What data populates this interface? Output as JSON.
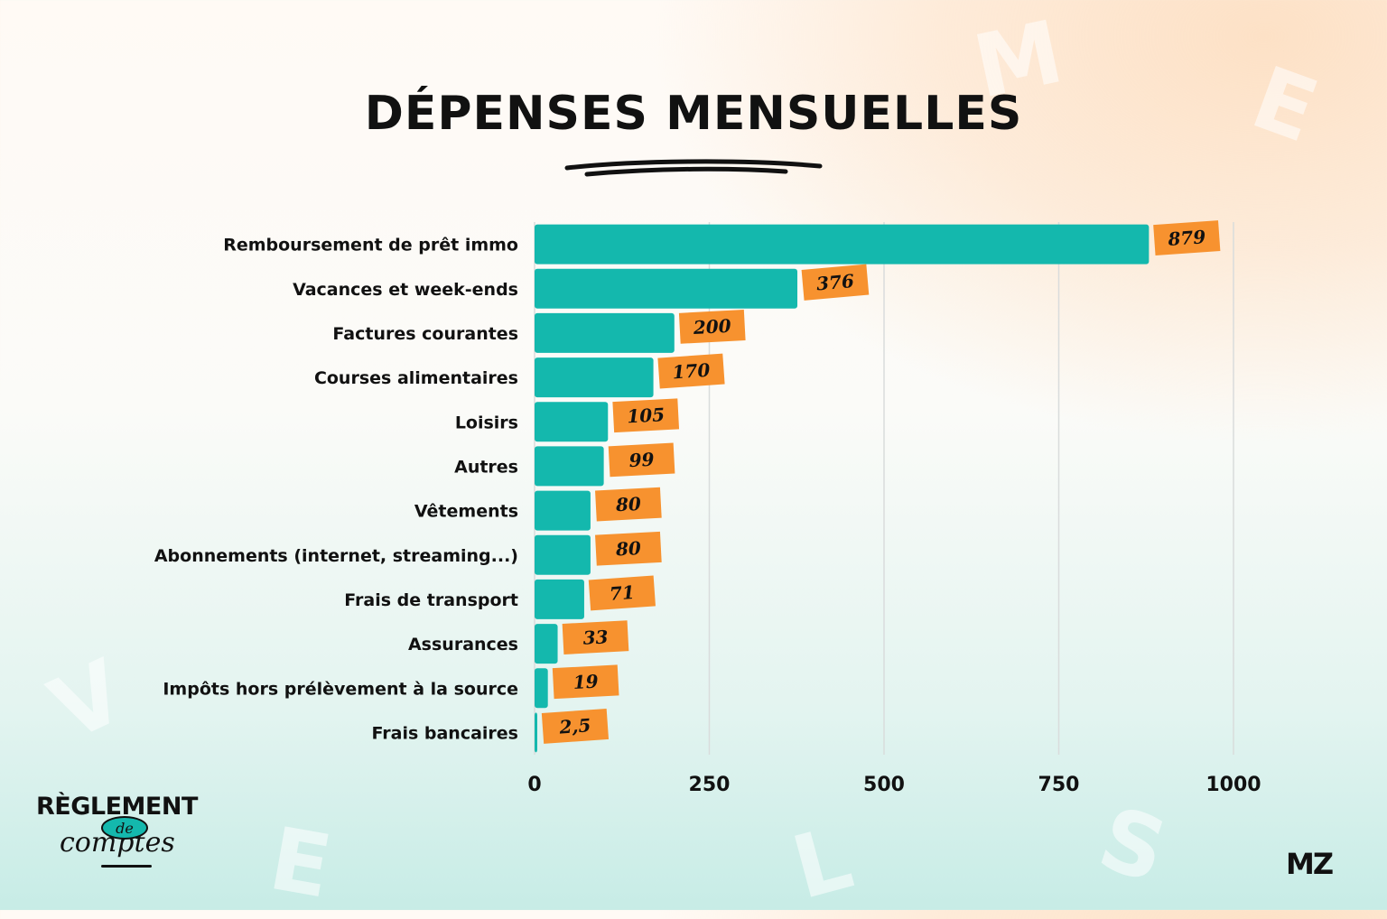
{
  "title": "DÉPENSES MENSUELLES",
  "brand_left": {
    "main": "RÈGLEMENT",
    "de": "de",
    "sub": "comptes"
  },
  "brand_right": "MZ",
  "colors": {
    "bar": "#14b8ad",
    "label_bg": "#f7922f",
    "text": "#111111",
    "grid": "#d9dcdc"
  },
  "chart_data": {
    "type": "bar",
    "orientation": "horizontal",
    "title": "DÉPENSES MENSUELLES",
    "categories": [
      "Remboursement de prêt immo",
      "Vacances et week-ends",
      "Factures courantes",
      "Courses alimentaires",
      "Loisirs",
      "Autres",
      "Vêtements",
      "Abonnements (internet, streaming...)",
      "Frais de transport",
      "Assurances",
      "Impôts hors prélèvement à la source",
      "Frais bancaires"
    ],
    "values": [
      879,
      376,
      200,
      170,
      105,
      99,
      80,
      80,
      71,
      33,
      19,
      2.5
    ],
    "value_labels": [
      "879",
      "376",
      "200",
      "170",
      "105",
      "99",
      "80",
      "80",
      "71",
      "33",
      "19",
      "2,5"
    ],
    "xticks": [
      "0",
      "250",
      "500",
      "750",
      "1000"
    ],
    "xtick_values": [
      0,
      250,
      500,
      750,
      1000
    ],
    "xlim": [
      0,
      1000
    ],
    "grid": true,
    "legend": "none"
  }
}
